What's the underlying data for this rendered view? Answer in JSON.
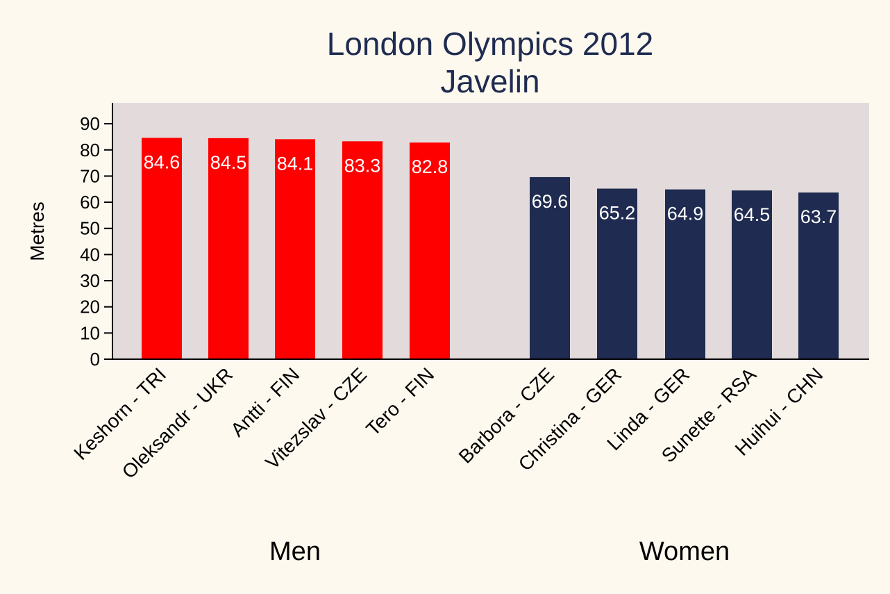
{
  "chart_data": {
    "type": "bar",
    "title": "London Olympics 2012",
    "subtitle": "Javelin",
    "ylabel": "Metres",
    "ylim": [
      0,
      98
    ],
    "yticks": [
      0,
      10,
      20,
      30,
      40,
      50,
      60,
      70,
      80,
      90
    ],
    "groups": [
      {
        "name": "Men",
        "color": "#ff0000",
        "categories": [
          "Keshorn - TRI",
          "Oleksandr - UKR",
          "Antti - FIN",
          "Vitezslav - CZE",
          "Tero - FIN"
        ],
        "values": [
          84.6,
          84.5,
          84.1,
          83.3,
          82.8
        ],
        "value_labels": [
          "84.6",
          "84.5",
          "84.1",
          "83.3",
          "82.8"
        ]
      },
      {
        "name": "Women",
        "color": "#1f2b50",
        "categories": [
          "Barbora - CZE",
          "Christina - GER",
          "Linda - GER",
          "Sunette - RSA",
          "Huihui - CHN"
        ],
        "values": [
          69.6,
          65.2,
          64.9,
          64.5,
          63.7
        ],
        "value_labels": [
          "69.6",
          "65.2",
          "64.9",
          "64.5",
          "63.7"
        ]
      }
    ],
    "colors": {
      "page_background": "#fdf9ef",
      "plot_background": "#e3dbdb",
      "title": "#1f2b50",
      "bar_label": "#ffffff"
    },
    "grid": false,
    "legend": "none"
  }
}
